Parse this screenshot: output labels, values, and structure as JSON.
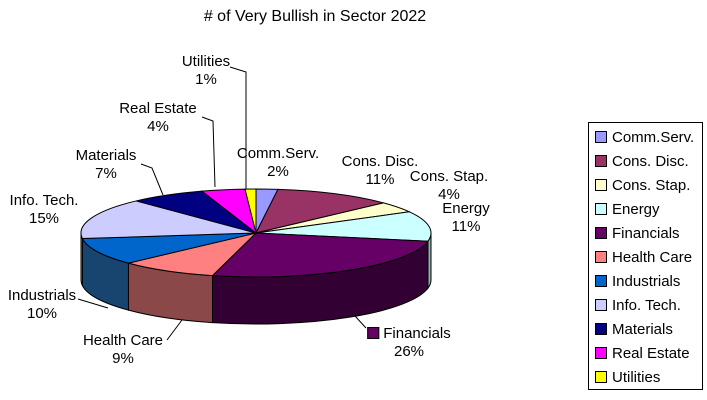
{
  "title": "# of Very Bullish in Sector 2022",
  "chart_data": {
    "type": "pie",
    "effect": "3d",
    "title": "# of Very Bullish in Sector 2022",
    "unit": "percent",
    "label_format": "category + percent",
    "legend_position": "right",
    "start_angle_deg": 0,
    "direction": "clockwise",
    "categories": [
      "Comm.Serv.",
      "Cons. Disc.",
      "Cons. Stap.",
      "Energy",
      "Financials",
      "Health Care",
      "Industrials",
      "Info. Tech.",
      "Materials",
      "Real Estate",
      "Utilities"
    ],
    "values": [
      2,
      11,
      4,
      11,
      26,
      9,
      10,
      15,
      7,
      4,
      1
    ],
    "slices": [
      {
        "label": "Comm.Serv.",
        "pct": 2,
        "color": "#9999FF"
      },
      {
        "label": "Cons. Disc.",
        "pct": 11,
        "color": "#993366"
      },
      {
        "label": "Cons. Stap.",
        "pct": 4,
        "color": "#FFFFCC"
      },
      {
        "label": "Energy",
        "pct": 11,
        "color": "#CCFFFF",
        "side": "#8FB2B2"
      },
      {
        "label": "Financials",
        "pct": 26,
        "color": "#660066",
        "side": "#330033",
        "label_has_key": true
      },
      {
        "label": "Health Care",
        "pct": 9,
        "color": "#FF8080",
        "side": "#8B4848"
      },
      {
        "label": "Industrials",
        "pct": 10,
        "color": "#0066CC",
        "side": "#17456F"
      },
      {
        "label": "Info. Tech.",
        "pct": 15,
        "color": "#CCCCFF",
        "side": "#8F8FB0"
      },
      {
        "label": "Materials",
        "pct": 7,
        "color": "#000080"
      },
      {
        "label": "Real Estate",
        "pct": 4,
        "color": "#FF00FF"
      },
      {
        "label": "Utilities",
        "pct": 1,
        "color": "#FFFF00"
      }
    ],
    "percent_suffix": "%"
  },
  "legend": {
    "items": [
      "Comm.Serv.",
      "Cons. Disc.",
      "Cons. Stap.",
      "Energy",
      "Financials",
      "Health Care",
      "Industrials",
      "Info. Tech.",
      "Materials",
      "Real Estate",
      "Utilities"
    ]
  }
}
